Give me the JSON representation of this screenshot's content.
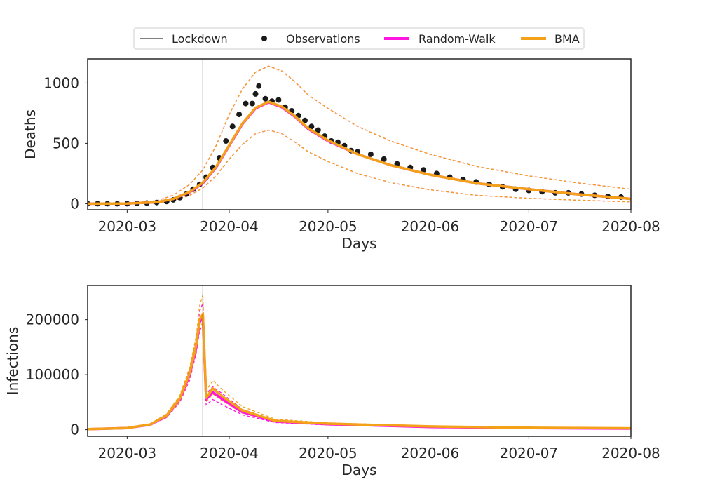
{
  "legend": {
    "items": [
      {
        "label": "Lockdown",
        "kind": "line",
        "color": "#000000"
      },
      {
        "label": "Observations",
        "kind": "dot",
        "color": "#1a1a1a"
      },
      {
        "label": "Random-Walk",
        "kind": "thick",
        "color": "#ff14e0"
      },
      {
        "label": "BMA",
        "kind": "thick",
        "color": "#f4a11a"
      }
    ]
  },
  "colors": {
    "random_walk": "#ff14e0",
    "bma": "#f4a11a",
    "observations": "#1a1a1a",
    "lockdown": "#000000",
    "axes": "#262626"
  },
  "chart_data": [
    {
      "type": "line",
      "xlabel": "Days",
      "ylabel": "Deaths",
      "x_axis": "date",
      "xlim": [
        "2020-02-18",
        "2020-08-01"
      ],
      "ylim": [
        -50,
        1200
      ],
      "x_ticks": [
        "2020-03",
        "2020-04",
        "2020-05",
        "2020-06",
        "2020-07",
        "2020-08"
      ],
      "y_ticks": [
        0,
        500,
        1000
      ],
      "grid": false,
      "lockdown_date": "2020-03-24",
      "observations": {
        "x": [
          "2020-02-18",
          "2020-02-21",
          "2020-02-24",
          "2020-02-27",
          "2020-03-01",
          "2020-03-04",
          "2020-03-07",
          "2020-03-10",
          "2020-03-13",
          "2020-03-15",
          "2020-03-17",
          "2020-03-19",
          "2020-03-21",
          "2020-03-23",
          "2020-03-25",
          "2020-03-27",
          "2020-03-29",
          "2020-03-31",
          "2020-04-02",
          "2020-04-04",
          "2020-04-06",
          "2020-04-08",
          "2020-04-09",
          "2020-04-10",
          "2020-04-12",
          "2020-04-14",
          "2020-04-16",
          "2020-04-18",
          "2020-04-20",
          "2020-04-22",
          "2020-04-24",
          "2020-04-26",
          "2020-04-28",
          "2020-04-30",
          "2020-05-02",
          "2020-05-04",
          "2020-05-06",
          "2020-05-08",
          "2020-05-10",
          "2020-05-14",
          "2020-05-18",
          "2020-05-22",
          "2020-05-26",
          "2020-05-30",
          "2020-06-03",
          "2020-06-07",
          "2020-06-11",
          "2020-06-15",
          "2020-06-19",
          "2020-06-23",
          "2020-06-27",
          "2020-07-01",
          "2020-07-05",
          "2020-07-09",
          "2020-07-13",
          "2020-07-17",
          "2020-07-21",
          "2020-07-25",
          "2020-07-29"
        ],
        "y": [
          0,
          0,
          0,
          0,
          0,
          2,
          5,
          10,
          18,
          32,
          50,
          80,
          120,
          160,
          220,
          300,
          380,
          520,
          640,
          740,
          830,
          830,
          910,
          975,
          870,
          850,
          860,
          800,
          770,
          730,
          690,
          640,
          610,
          560,
          520,
          510,
          480,
          440,
          430,
          410,
          370,
          330,
          300,
          280,
          250,
          220,
          200,
          180,
          160,
          140,
          120,
          110,
          100,
          90,
          90,
          80,
          70,
          60,
          55
        ],
        "label": "Observations"
      },
      "series": [
        {
          "name": "Random-Walk",
          "x": [
            "2020-02-18",
            "2020-03-01",
            "2020-03-10",
            "2020-03-15",
            "2020-03-20",
            "2020-03-24",
            "2020-03-28",
            "2020-04-01",
            "2020-04-05",
            "2020-04-09",
            "2020-04-13",
            "2020-04-17",
            "2020-04-21",
            "2020-04-25",
            "2020-05-01",
            "2020-05-10",
            "2020-05-20",
            "2020-06-01",
            "2020-06-15",
            "2020-07-01",
            "2020-07-15",
            "2020-08-01"
          ],
          "y": [
            0,
            2,
            12,
            40,
            95,
            170,
            300,
            480,
            660,
            790,
            840,
            800,
            720,
            620,
            520,
            410,
            320,
            240,
            170,
            120,
            80,
            40
          ],
          "lower": [
            0,
            0,
            5,
            25,
            70,
            130,
            230,
            370,
            490,
            580,
            610,
            580,
            510,
            430,
            350,
            250,
            175,
            115,
            70,
            45,
            30,
            15
          ],
          "upper": [
            0,
            5,
            25,
            70,
            160,
            280,
            480,
            740,
            950,
            1090,
            1140,
            1100,
            1010,
            900,
            790,
            640,
            520,
            410,
            310,
            230,
            175,
            120
          ]
        },
        {
          "name": "BMA",
          "x": [
            "2020-02-18",
            "2020-03-01",
            "2020-03-10",
            "2020-03-15",
            "2020-03-20",
            "2020-03-24",
            "2020-03-28",
            "2020-04-01",
            "2020-04-05",
            "2020-04-09",
            "2020-04-13",
            "2020-04-17",
            "2020-04-21",
            "2020-04-25",
            "2020-05-01",
            "2020-05-10",
            "2020-05-20",
            "2020-06-01",
            "2020-06-15",
            "2020-07-01",
            "2020-07-15",
            "2020-08-01"
          ],
          "y": [
            0,
            2,
            12,
            40,
            98,
            175,
            305,
            485,
            665,
            795,
            845,
            805,
            725,
            625,
            525,
            410,
            320,
            240,
            170,
            120,
            80,
            40
          ],
          "lower": [
            0,
            0,
            5,
            25,
            70,
            130,
            230,
            370,
            490,
            580,
            610,
            580,
            510,
            430,
            350,
            250,
            175,
            115,
            70,
            45,
            30,
            15
          ],
          "upper": [
            0,
            5,
            25,
            70,
            160,
            280,
            480,
            740,
            950,
            1090,
            1140,
            1100,
            1010,
            900,
            790,
            640,
            520,
            410,
            310,
            230,
            175,
            120
          ]
        }
      ]
    },
    {
      "type": "line",
      "xlabel": "Days",
      "ylabel": "Infections",
      "x_axis": "date",
      "xlim": [
        "2020-02-18",
        "2020-08-01"
      ],
      "ylim": [
        -12000,
        262000
      ],
      "x_ticks": [
        "2020-03",
        "2020-04",
        "2020-05",
        "2020-06",
        "2020-07",
        "2020-08"
      ],
      "y_ticks": [
        0,
        100000,
        200000
      ],
      "grid": false,
      "lockdown_date": "2020-03-24",
      "series": [
        {
          "name": "Random-Walk",
          "x": [
            "2020-02-18",
            "2020-03-01",
            "2020-03-08",
            "2020-03-13",
            "2020-03-17",
            "2020-03-20",
            "2020-03-22",
            "2020-03-23",
            "2020-03-24",
            "2020-03-25",
            "2020-03-27",
            "2020-03-30",
            "2020-04-05",
            "2020-04-15",
            "2020-05-01",
            "2020-06-01",
            "2020-07-01",
            "2020-08-01"
          ],
          "y": [
            1000,
            3000,
            9000,
            25000,
            55000,
            100000,
            150000,
            195000,
            205000,
            55000,
            68000,
            55000,
            32000,
            15000,
            10000,
            5000,
            3000,
            2000
          ],
          "lower": [
            800,
            2600,
            8000,
            22000,
            50000,
            90000,
            140000,
            180000,
            190000,
            45000,
            55000,
            45000,
            27000,
            13000,
            8500,
            4000,
            2200,
            1500
          ],
          "upper": [
            1200,
            3400,
            10000,
            28000,
            60000,
            110000,
            165000,
            215000,
            230000,
            65000,
            78000,
            65000,
            37000,
            17000,
            11500,
            6000,
            3600,
            2500
          ]
        },
        {
          "name": "BMA",
          "x": [
            "2020-02-18",
            "2020-03-01",
            "2020-03-08",
            "2020-03-13",
            "2020-03-17",
            "2020-03-20",
            "2020-03-22",
            "2020-03-23",
            "2020-03-24",
            "2020-03-25",
            "2020-03-27",
            "2020-03-30",
            "2020-04-05",
            "2020-04-15",
            "2020-05-01",
            "2020-06-01",
            "2020-07-01",
            "2020-08-01"
          ],
          "y": [
            1000,
            3000,
            9500,
            26000,
            57000,
            103000,
            155000,
            200000,
            210000,
            58000,
            75000,
            60000,
            35000,
            16000,
            11000,
            6000,
            3500,
            2500
          ],
          "lower": [
            800,
            2600,
            8200,
            22500,
            51000,
            93000,
            143000,
            185000,
            195000,
            50000,
            65000,
            52000,
            30000,
            14000,
            9500,
            4600,
            2600,
            1800
          ],
          "upper": [
            1200,
            3400,
            10500,
            29000,
            62000,
            113000,
            170000,
            225000,
            245000,
            70000,
            90000,
            72000,
            42000,
            19000,
            12500,
            7000,
            4200,
            3000
          ]
        }
      ]
    }
  ]
}
